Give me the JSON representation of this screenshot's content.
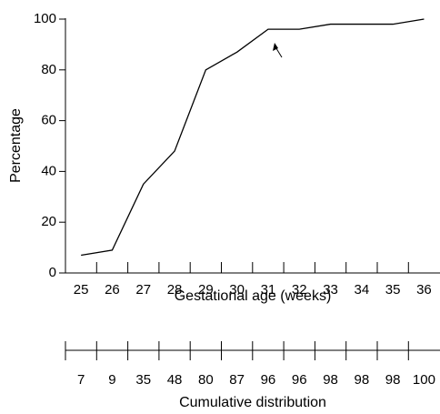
{
  "chart_data": {
    "type": "line",
    "x_label": "Gestational age (weeks)",
    "y_label": "Percentage",
    "categories": [
      "25",
      "26",
      "27",
      "28",
      "29",
      "30",
      "31",
      "32",
      "33",
      "34",
      "35",
      "36"
    ],
    "values": [
      7,
      9,
      35,
      48,
      80,
      87,
      96,
      96,
      98,
      98,
      98,
      100
    ],
    "color": "#000000",
    "ylim": [
      0,
      100
    ],
    "yticks": [
      0,
      20,
      40,
      60,
      80,
      100
    ],
    "table_label": "Cumulative distribution"
  }
}
